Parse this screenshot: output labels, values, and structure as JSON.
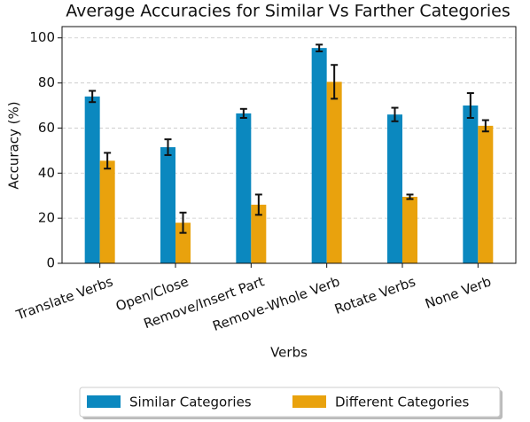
{
  "chart_data": {
    "type": "bar",
    "title": "Average Accuracies for Similar Vs Farther Categories",
    "x_label": "Verbs",
    "y_label": "Accuracy (%)",
    "categories": [
      "Translate Verbs",
      "Open/Close",
      "Remove/Insert Part",
      "Remove-Whole Verb",
      "Rotate Verbs",
      "None Verb"
    ],
    "series": [
      {
        "name": "Similar Categories",
        "color": "#0b88bf",
        "values": [
          74,
          51.5,
          66.5,
          95.5,
          66,
          70
        ],
        "errors": [
          2.5,
          3.5,
          2,
          1.5,
          3,
          5.5
        ]
      },
      {
        "name": "Different Categories",
        "color": "#e9a20d",
        "values": [
          45.5,
          18,
          26,
          80.5,
          29.5,
          61
        ],
        "errors": [
          3.5,
          4.5,
          4.5,
          7.5,
          1,
          2.5
        ]
      }
    ],
    "ylim": [
      0,
      105
    ],
    "yticks": [
      0,
      20,
      40,
      60,
      80,
      100
    ],
    "grid": true,
    "legend": "bottom"
  }
}
